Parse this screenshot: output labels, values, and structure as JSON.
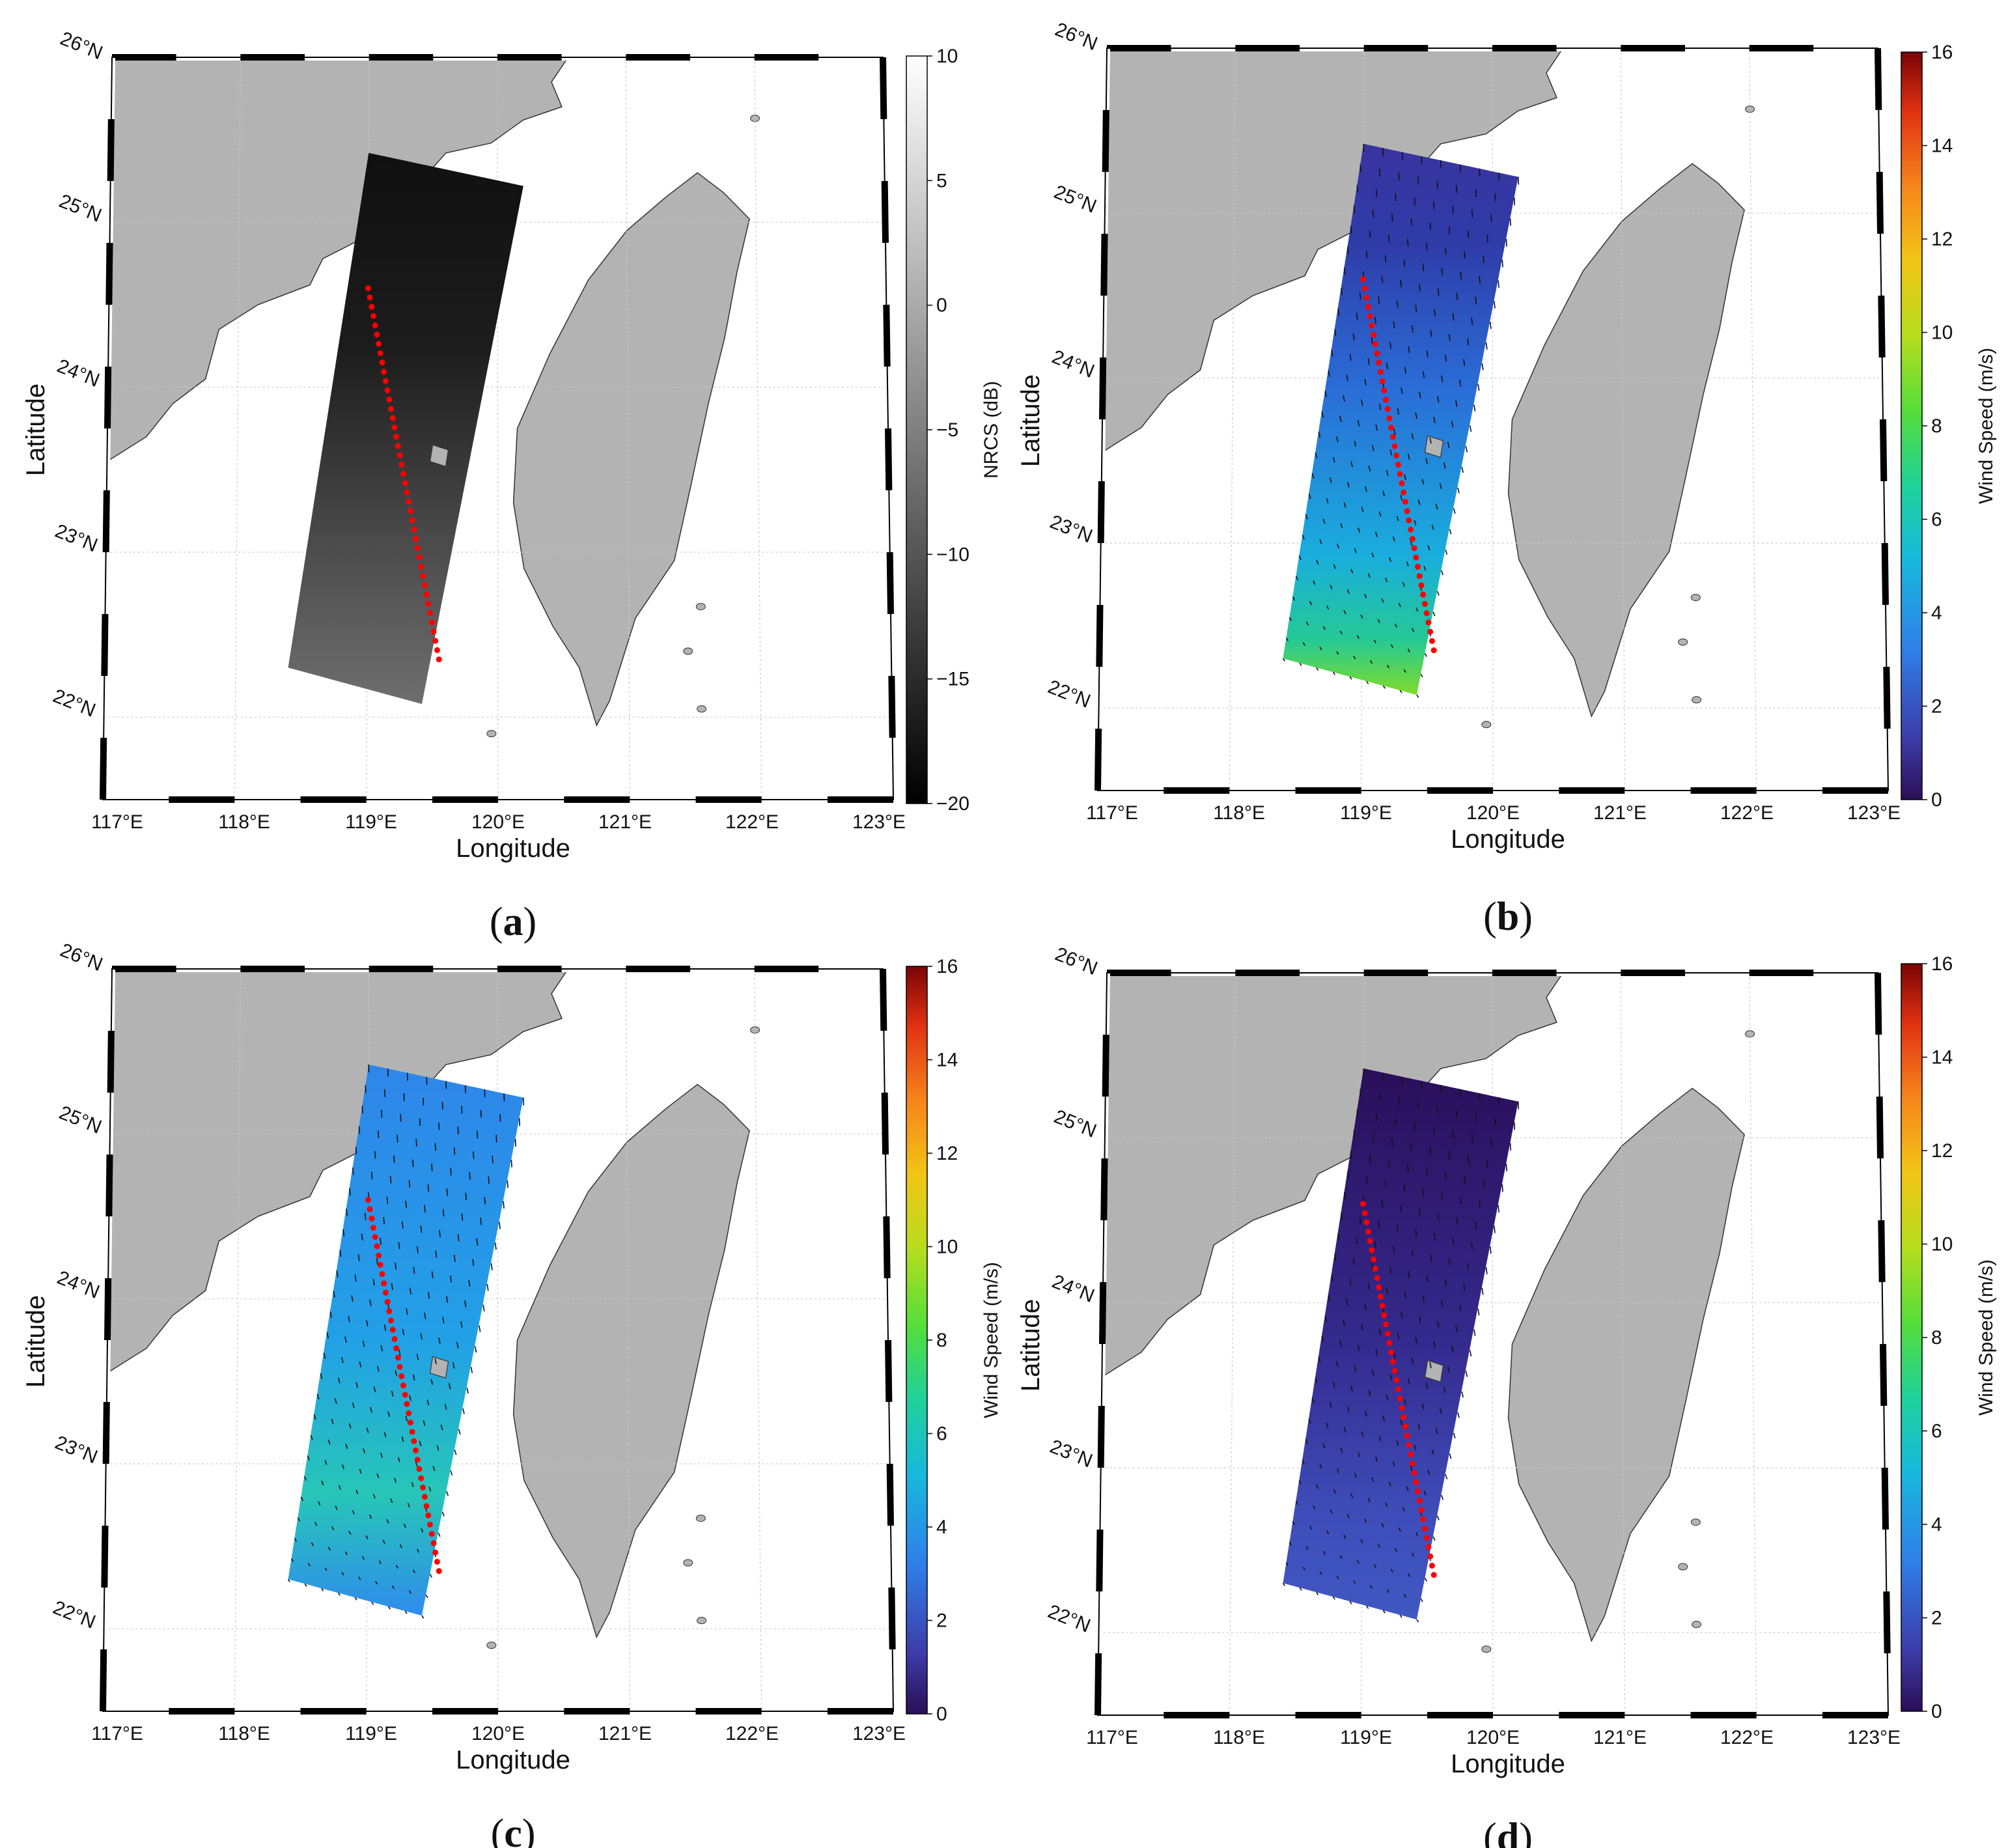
{
  "figure": {
    "colors": {
      "land": "#b3b3b3",
      "coast": "#333333",
      "grid": "#c8c8c8",
      "track": "#ff0000",
      "frame": "#000000",
      "vector": "#111111"
    },
    "axis_labels": {
      "x": "Longitude",
      "y": "Latitude"
    },
    "lon_ticks": [
      "117°E",
      "118°E",
      "119°E",
      "120°E",
      "121°E",
      "122°E",
      "123°E"
    ],
    "lat_ticks": [
      "22°N",
      "23°N",
      "24°N",
      "25°N",
      "26°N"
    ],
    "panels": [
      {
        "caption_open": "(",
        "caption_letter": "a",
        "caption_close": ")",
        "colorbar_label": "NRCS (dB)",
        "colorbar_ticks": [
          "10",
          "5",
          "0",
          "−5",
          "−10",
          "−15",
          "−20"
        ],
        "colormap": "gray",
        "show_vectors": false
      },
      {
        "caption_open": "(",
        "caption_letter": "b",
        "caption_close": ")",
        "colorbar_label": "Wind Speed (m/s)",
        "colorbar_ticks": [
          "16",
          "14",
          "12",
          "10",
          "8",
          "6",
          "4",
          "2",
          "0"
        ],
        "colormap": "jet",
        "show_vectors": true
      },
      {
        "caption_open": "(",
        "caption_letter": "c",
        "caption_close": ")",
        "colorbar_label": "Wind Speed (m/s)",
        "colorbar_ticks": [
          "16",
          "14",
          "12",
          "10",
          "8",
          "6",
          "4",
          "2",
          "0"
        ],
        "colormap": "jet",
        "show_vectors": true
      },
      {
        "caption_open": "(",
        "caption_letter": "d",
        "caption_close": ")",
        "colorbar_label": "Wind Speed (m/s)",
        "colorbar_ticks": [
          "16",
          "14",
          "12",
          "10",
          "8",
          "6",
          "4",
          "2",
          "0"
        ],
        "colormap": "jet",
        "show_vectors": true
      }
    ]
  }
}
